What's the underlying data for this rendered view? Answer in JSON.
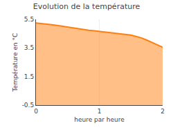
{
  "chart_data": {
    "type": "area",
    "title": "Evolution de la température",
    "xlabel": "heure par heure",
    "ylabel": "Température en °C",
    "x": [
      0.0,
      0.083,
      0.167,
      0.25,
      0.333,
      0.417,
      0.5,
      0.583,
      0.667,
      0.75,
      0.833,
      0.917,
      1.0,
      1.083,
      1.167,
      1.25,
      1.333,
      1.417,
      1.5,
      1.583,
      1.667,
      1.75,
      1.833,
      1.917,
      2.0
    ],
    "values": [
      5.25,
      5.22,
      5.18,
      5.13,
      5.08,
      5.02,
      4.96,
      4.9,
      4.84,
      4.79,
      4.74,
      4.7,
      4.66,
      4.62,
      4.58,
      4.54,
      4.5,
      4.45,
      4.4,
      4.3,
      4.2,
      4.05,
      3.9,
      3.72,
      3.55
    ],
    "xlim": [
      0,
      2
    ],
    "ylim": [
      -0.5,
      5.5
    ],
    "xticks": [
      0,
      1,
      2
    ],
    "yticks": [
      -0.5,
      1.5,
      3.5,
      5.5
    ],
    "grid": "x"
  }
}
